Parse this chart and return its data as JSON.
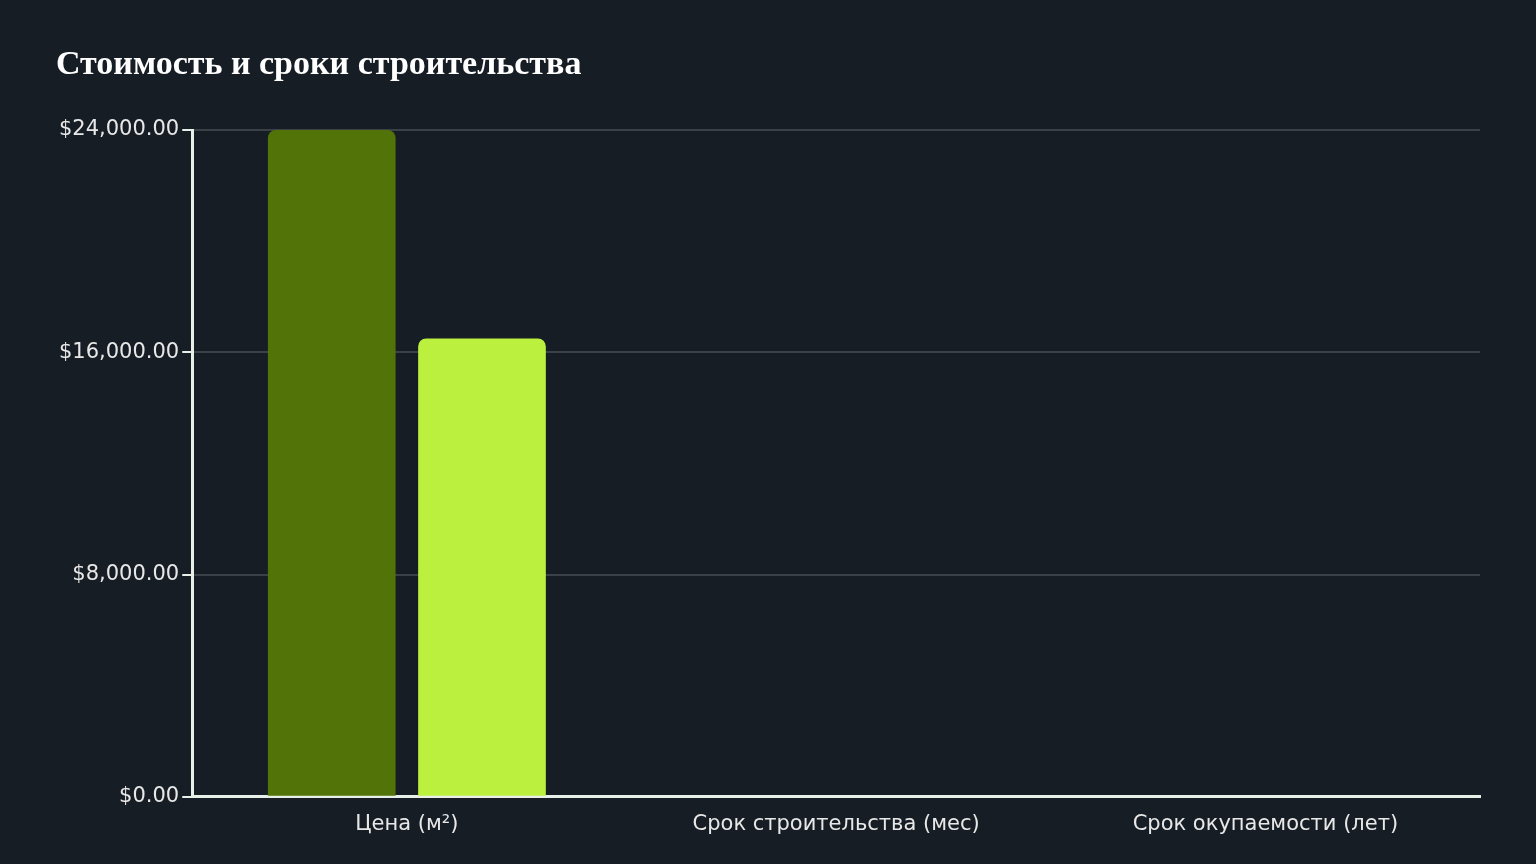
{
  "chart_data": {
    "type": "bar",
    "title": "Стоимость и сроки строительства",
    "categories": [
      "Цена (м²)",
      "Срок строительства (мес)",
      "Срок окупаемости (лет)"
    ],
    "series": [
      {
        "color": "#527307",
        "values": [
          24000,
          0,
          0
        ]
      },
      {
        "color": "#bbf03f",
        "values": [
          16500,
          0,
          0
        ]
      }
    ],
    "ylim": [
      0,
      24000
    ],
    "yticks": [
      {
        "value": 0,
        "label": "$0.00"
      },
      {
        "value": 8000,
        "label": "$8,000.00"
      },
      {
        "value": 16000,
        "label": "$16,000.00"
      },
      {
        "value": 24000,
        "label": "$24,000.00"
      }
    ],
    "grid": "y",
    "legend": false
  }
}
